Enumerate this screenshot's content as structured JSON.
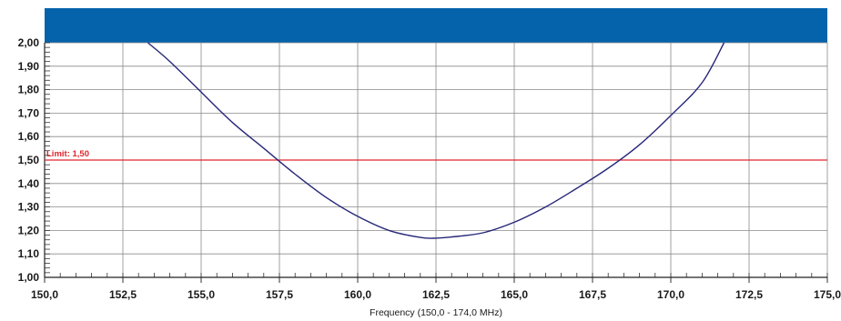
{
  "chart_data": {
    "type": "line",
    "title": "",
    "xlabel": "Frequency (150,0 - 174,0 MHz)",
    "ylabel": "",
    "xlim": [
      150.0,
      175.0
    ],
    "ylim": [
      1.0,
      2.0
    ],
    "x_ticks": [
      "150,0",
      "152,5",
      "155,0",
      "157,5",
      "160,0",
      "162,5",
      "165,0",
      "167,5",
      "170,0",
      "172,5",
      "175,0"
    ],
    "x_tick_values": [
      150.0,
      152.5,
      155.0,
      157.5,
      160.0,
      162.5,
      165.0,
      167.5,
      170.0,
      172.5,
      175.0
    ],
    "y_ticks": [
      "1,00",
      "1,10",
      "1,20",
      "1,30",
      "1,40",
      "1,50",
      "1,60",
      "1,70",
      "1,80",
      "1,90",
      "2,00"
    ],
    "y_tick_values": [
      1.0,
      1.1,
      1.2,
      1.3,
      1.4,
      1.5,
      1.6,
      1.7,
      1.8,
      1.9,
      2.0
    ],
    "grid": true,
    "series": [
      {
        "color": "#27277a",
        "x": [
          153.3,
          154.0,
          155.0,
          156.0,
          157.0,
          158.0,
          159.0,
          160.0,
          161.0,
          162.0,
          162.5,
          163.0,
          164.0,
          165.0,
          166.0,
          167.0,
          168.0,
          169.0,
          170.0,
          171.0,
          171.7
        ],
        "y": [
          2.0,
          1.92,
          1.79,
          1.66,
          1.55,
          1.44,
          1.34,
          1.26,
          1.2,
          1.17,
          1.167,
          1.172,
          1.19,
          1.235,
          1.3,
          1.38,
          1.465,
          1.565,
          1.69,
          1.83,
          2.0
        ]
      }
    ],
    "limit": {
      "label": "Limit: 1,50",
      "value": 1.5,
      "color": "#e0262c"
    },
    "colors": {
      "header": "#0563ab",
      "grid": "#8a8a8a"
    }
  }
}
